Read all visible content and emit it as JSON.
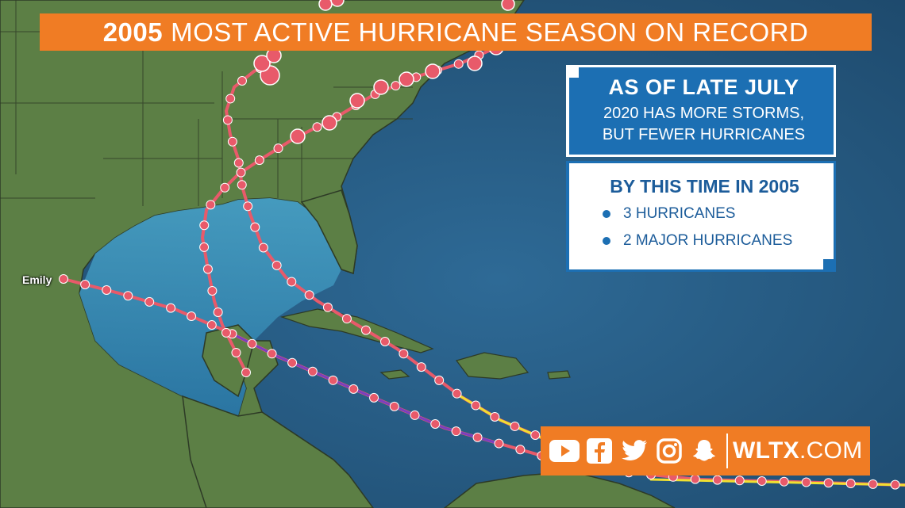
{
  "banner": {
    "year": "2005",
    "title": "MOST ACTIVE HURRICANE SEASON ON RECORD"
  },
  "panel_top": {
    "heading": "AS OF LATE JULY",
    "line1": "2020 HAS MORE STORMS,",
    "line2": "BUT FEWER HURRICANES"
  },
  "panel_bottom": {
    "heading": "BY THIS TIME IN 2005",
    "items": [
      "3 HURRICANES",
      "2 MAJOR HURRICANES"
    ]
  },
  "social": {
    "icons": [
      "youtube-icon",
      "facebook-icon",
      "twitter-icon",
      "instagram-icon",
      "snapchat-icon"
    ],
    "site_bold": "WLTX",
    "site_rest": ".COM"
  },
  "storm_label": "Emily",
  "colors": {
    "banner": "#f07c24",
    "panel_blue": "#1c6fb3",
    "ocean": "#24557e",
    "land": "#5f8048",
    "track_marker": "#e85a6a"
  }
}
